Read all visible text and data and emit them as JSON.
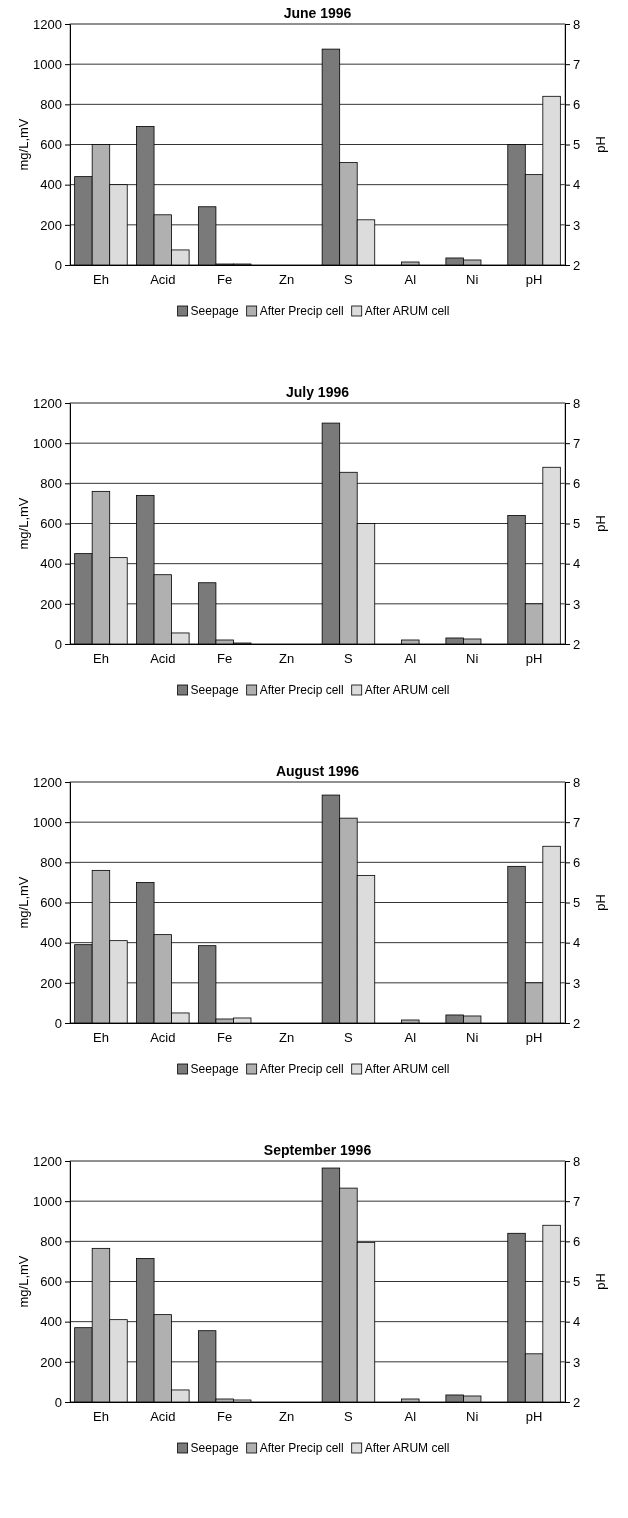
{
  "chart_data": [
    {
      "type": "bar",
      "title": "June 1996",
      "ylabel": "mg/L,mV",
      "y2label": "pH",
      "categories": [
        "Eh",
        "Acid",
        "Fe",
        "Zn",
        "S",
        "Al",
        "Ni",
        "pH"
      ],
      "ylim": [
        0,
        1200
      ],
      "yticks": [
        0,
        200,
        400,
        600,
        800,
        1000,
        1200
      ],
      "y2lim": [
        2,
        8
      ],
      "y2ticks": [
        2,
        3,
        4,
        5,
        6,
        7,
        8
      ],
      "grid": "y",
      "legend": "bottom",
      "series": [
        {
          "name": "Seepage",
          "color": "#7a7a7a",
          "values": [
            440,
            690,
            290,
            0,
            1075,
            0,
            35,
            null
          ]
        },
        {
          "name": "After Precip cell",
          "color": "#b0b0b0",
          "values": [
            600,
            250,
            5,
            0,
            510,
            15,
            25,
            null
          ]
        },
        {
          "name": "After ARUM cell",
          "color": "#dcdcdc",
          "values": [
            400,
            75,
            5,
            0,
            225,
            0,
            0,
            null
          ]
        },
        {
          "axis": "y2",
          "color": "#7a7a7a",
          "values": [
            null,
            null,
            null,
            null,
            null,
            null,
            null,
            5.0
          ]
        },
        {
          "axis": "y2",
          "color": "#b0b0b0",
          "values": [
            null,
            null,
            null,
            null,
            null,
            null,
            null,
            4.25
          ]
        },
        {
          "axis": "y2",
          "color": "#dcdcdc",
          "values": [
            null,
            null,
            null,
            null,
            null,
            null,
            null,
            6.2
          ]
        }
      ]
    },
    {
      "type": "bar",
      "title": "July 1996",
      "ylabel": "mg/L,mV",
      "y2label": "pH",
      "categories": [
        "Eh",
        "Acid",
        "Fe",
        "Zn",
        "S",
        "Al",
        "Ni",
        "pH"
      ],
      "ylim": [
        0,
        1200
      ],
      "yticks": [
        0,
        200,
        400,
        600,
        800,
        1000,
        1200
      ],
      "y2lim": [
        2,
        8
      ],
      "y2ticks": [
        2,
        3,
        4,
        5,
        6,
        7,
        8
      ],
      "grid": "y",
      "legend": "bottom",
      "series": [
        {
          "name": "Seepage",
          "color": "#7a7a7a",
          "values": [
            450,
            740,
            305,
            0,
            1100,
            0,
            30,
            null
          ]
        },
        {
          "name": "After Precip cell",
          "color": "#b0b0b0",
          "values": [
            760,
            345,
            20,
            0,
            855,
            20,
            25,
            null
          ]
        },
        {
          "name": "After ARUM cell",
          "color": "#dcdcdc",
          "values": [
            430,
            55,
            5,
            0,
            600,
            0,
            0,
            null
          ]
        },
        {
          "axis": "y2",
          "color": "#7a7a7a",
          "values": [
            null,
            null,
            null,
            null,
            null,
            null,
            null,
            5.2
          ]
        },
        {
          "axis": "y2",
          "color": "#b0b0b0",
          "values": [
            null,
            null,
            null,
            null,
            null,
            null,
            null,
            3.0
          ]
        },
        {
          "axis": "y2",
          "color": "#dcdcdc",
          "values": [
            null,
            null,
            null,
            null,
            null,
            null,
            null,
            6.4
          ]
        }
      ]
    },
    {
      "type": "bar",
      "title": "August 1996",
      "ylabel": "mg/L,mV",
      "y2label": "pH",
      "categories": [
        "Eh",
        "Acid",
        "Fe",
        "Zn",
        "S",
        "Al",
        "Ni",
        "pH"
      ],
      "ylim": [
        0,
        1200
      ],
      "yticks": [
        0,
        200,
        400,
        600,
        800,
        1000,
        1200
      ],
      "y2lim": [
        2,
        8
      ],
      "y2ticks": [
        2,
        3,
        4,
        5,
        6,
        7,
        8
      ],
      "grid": "y",
      "legend": "bottom",
      "series": [
        {
          "name": "Seepage",
          "color": "#7a7a7a",
          "values": [
            390,
            700,
            385,
            0,
            1135,
            0,
            40,
            null
          ]
        },
        {
          "name": "After Precip cell",
          "color": "#b0b0b0",
          "values": [
            760,
            440,
            20,
            0,
            1020,
            15,
            35,
            null
          ]
        },
        {
          "name": "After ARUM cell",
          "color": "#dcdcdc",
          "values": [
            410,
            50,
            25,
            0,
            735,
            0,
            0,
            null
          ]
        },
        {
          "axis": "y2",
          "color": "#7a7a7a",
          "values": [
            null,
            null,
            null,
            null,
            null,
            null,
            null,
            5.9
          ]
        },
        {
          "axis": "y2",
          "color": "#b0b0b0",
          "values": [
            null,
            null,
            null,
            null,
            null,
            null,
            null,
            3.0
          ]
        },
        {
          "axis": "y2",
          "color": "#dcdcdc",
          "values": [
            null,
            null,
            null,
            null,
            null,
            null,
            null,
            6.4
          ]
        }
      ]
    },
    {
      "type": "bar",
      "title": "September 1996",
      "ylabel": "mg/L,mV",
      "y2label": "pH",
      "categories": [
        "Eh",
        "Acid",
        "Fe",
        "Zn",
        "S",
        "Al",
        "Ni",
        "pH"
      ],
      "ylim": [
        0,
        1200
      ],
      "yticks": [
        0,
        200,
        400,
        600,
        800,
        1000,
        1200
      ],
      "y2lim": [
        2,
        8
      ],
      "y2ticks": [
        2,
        3,
        4,
        5,
        6,
        7,
        8
      ],
      "grid": "y",
      "legend": "bottom",
      "series": [
        {
          "name": "Seepage",
          "color": "#7a7a7a",
          "values": [
            370,
            715,
            355,
            0,
            1165,
            0,
            35,
            null
          ]
        },
        {
          "name": "After Precip cell",
          "color": "#b0b0b0",
          "values": [
            765,
            435,
            15,
            0,
            1065,
            15,
            30,
            null
          ]
        },
        {
          "name": "After ARUM cell",
          "color": "#dcdcdc",
          "values": [
            410,
            60,
            10,
            0,
            795,
            0,
            0,
            null
          ]
        },
        {
          "axis": "y2",
          "color": "#7a7a7a",
          "values": [
            null,
            null,
            null,
            null,
            null,
            null,
            null,
            6.2
          ]
        },
        {
          "axis": "y2",
          "color": "#b0b0b0",
          "values": [
            null,
            null,
            null,
            null,
            null,
            null,
            null,
            3.2
          ]
        },
        {
          "axis": "y2",
          "color": "#dcdcdc",
          "values": [
            null,
            null,
            null,
            null,
            null,
            null,
            null,
            6.4
          ]
        }
      ]
    }
  ]
}
